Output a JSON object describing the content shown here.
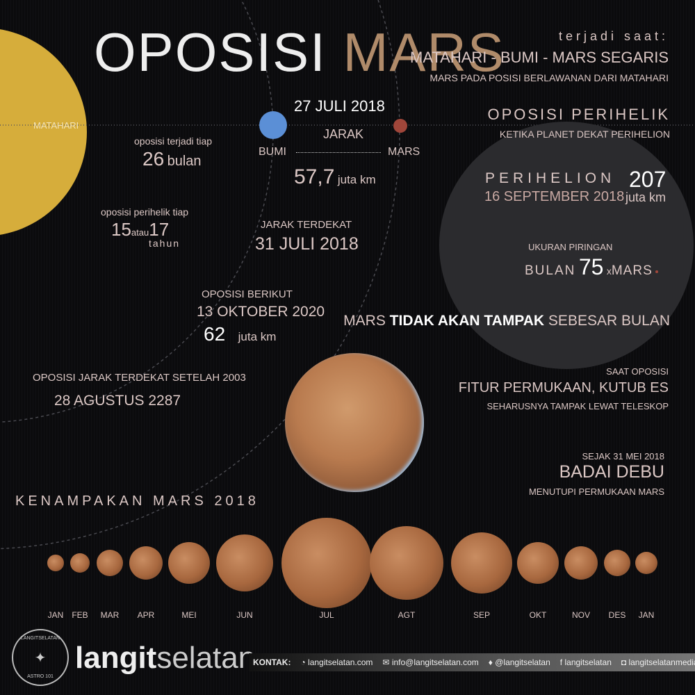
{
  "title": {
    "part1": "OPOSISI",
    "part2": "MARS"
  },
  "colors": {
    "sun": "#d6ad3b",
    "earth": "#5b8fd6",
    "mars": "#a0463a",
    "text": "#dcc8c5",
    "title_mars": "#b08b6a"
  },
  "sun_label": "MATAHARI",
  "intro": {
    "heading": "terjadi saat:",
    "line1": "MATAHARI - BUMI - MARS SEGARIS",
    "line2": "MARS  PADA POSISI BERLAWANAN DARI MATAHARI"
  },
  "opposition": {
    "date": "27 JULI 2018",
    "distance_label": "JARAK",
    "earth": "BUMI",
    "mars": "MARS",
    "distance_value": "57,7",
    "distance_unit": "juta km"
  },
  "period": {
    "text": "oposisi terjadi tiap",
    "value": "26",
    "unit": "bulan"
  },
  "perihelic_period": {
    "text": "oposisi perihelik tiap",
    "v1": "15",
    "or": "atau",
    "v2": "17",
    "unit": "tahun"
  },
  "closest": {
    "label": "JARAK TERDEKAT",
    "date": "31 JULI 2018"
  },
  "next": {
    "label": "OPOSISI BERIKUT",
    "date": "13 OKTOBER 2020",
    "value": "62",
    "unit": "juta km"
  },
  "closest_since": {
    "label": "OPOSISI JARAK TERDEKAT SETELAH 2003",
    "date": "28 AGUSTUS 2287"
  },
  "perihelic": {
    "title": "OPOSISI PERIHELIK",
    "sub": "KETIKA PLANET DEKAT PERIHELION",
    "perihelion": "PERIHELION",
    "date": "16 SEPTEMBER 2018",
    "value": "207",
    "unit": "juta km"
  },
  "disk": {
    "label": "UKURAN PIRINGAN",
    "moon": "BULAN",
    "value": "75",
    "x": "x",
    "mars": "MARS"
  },
  "not_as_big": {
    "a": "MARS ",
    "b": "TIDAK AKAN TAMPAK",
    "c": " SEBESAR BULAN"
  },
  "features": {
    "l1": "SAAT OPOSISI",
    "l2": "FITUR PERMUKAAN, KUTUB ES",
    "l3": "SEHARUSNYA TAMPAK LEWAT TELESKOP"
  },
  "storm": {
    "l1": "SEJAK 31 MEI 2018",
    "l2": "BADAI DEBU",
    "l3": "MENUTUPI PERMUKAAN MARS"
  },
  "appearance_title": "KENAMPAKAN MARS 2018",
  "months": [
    "JAN",
    "FEB",
    "MAR",
    "APR",
    "MEI",
    "JUN",
    "JUL",
    "AGT",
    "SEP",
    "OKT",
    "NOV",
    "DES",
    "JAN"
  ],
  "footer": {
    "logo_text_top": "LANGITSELATAN",
    "logo_text_bottom": "ASTRO 101",
    "brand_bold": "langit",
    "brand_light": "selatan",
    "contact_label": "KONTAK:",
    "web": "langitselatan.com",
    "email": "info@langitselatan.com",
    "twitter": "@langitselatan",
    "facebook": "langitselatan",
    "instagram": "langitselatanmedia"
  }
}
